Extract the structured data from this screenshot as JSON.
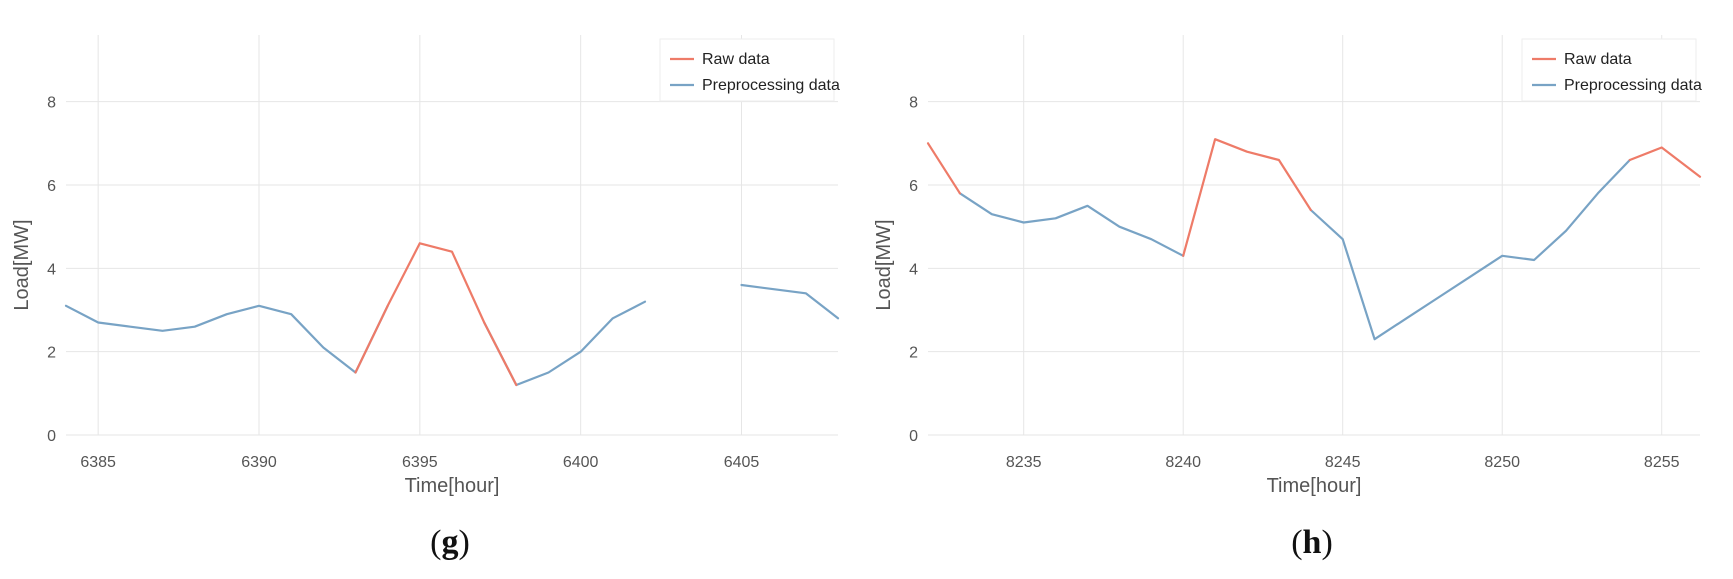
{
  "colors": {
    "raw": "#ee7b68",
    "preprocessing": "#78a3c5"
  },
  "chart_data": [
    {
      "type": "line",
      "panel_label": "g",
      "title": "",
      "xlabel": "Time[hour]",
      "ylabel": "Load[MW]",
      "xlim": [
        6384,
        6408
      ],
      "ylim": [
        0,
        9.6
      ],
      "xticks": [
        6385,
        6390,
        6395,
        6400,
        6405
      ],
      "yticks": [
        0,
        2,
        4,
        6,
        8
      ],
      "grid": true,
      "legend_position": "top-right",
      "series": [
        {
          "name": "Raw data",
          "color_key": "raw",
          "segments": [
            [
              [
                6393,
                1.5
              ],
              [
                6394,
                3.1
              ],
              [
                6395,
                4.6
              ],
              [
                6396,
                4.4
              ],
              [
                6397,
                2.7
              ],
              [
                6398,
                1.2
              ]
            ]
          ]
        },
        {
          "name": "Preprocessing data",
          "color_key": "preprocessing",
          "segments": [
            [
              [
                6384,
                3.1
              ],
              [
                6385,
                2.7
              ],
              [
                6386,
                2.6
              ],
              [
                6387,
                2.5
              ],
              [
                6388,
                2.6
              ],
              [
                6389,
                2.9
              ],
              [
                6390,
                3.1
              ],
              [
                6391,
                2.9
              ],
              [
                6392,
                2.1
              ],
              [
                6393,
                1.5
              ],
              [
                6394,
                3.1
              ]
            ],
            [
              [
                6397,
                2.7
              ],
              [
                6398,
                1.2
              ],
              [
                6399,
                1.5
              ],
              [
                6400,
                2.0
              ],
              [
                6401,
                2.8
              ],
              [
                6402,
                3.2
              ]
            ],
            [
              [
                6405,
                3.6
              ],
              [
                6406,
                3.5
              ],
              [
                6407,
                3.4
              ],
              [
                6408,
                2.8
              ]
            ]
          ]
        }
      ]
    },
    {
      "type": "line",
      "panel_label": "h",
      "title": "",
      "xlabel": "Time[hour]",
      "ylabel": "Load[MW]",
      "xlim": [
        8232,
        8256.2
      ],
      "ylim": [
        0,
        9.6
      ],
      "xticks": [
        8235,
        8240,
        8245,
        8250,
        8255
      ],
      "yticks": [
        0,
        2,
        4,
        6,
        8
      ],
      "grid": true,
      "legend_position": "top-right",
      "series": [
        {
          "name": "Raw data",
          "color_key": "raw",
          "segments": [
            [
              [
                8232,
                7.0
              ],
              [
                8233,
                5.8
              ]
            ],
            [
              [
                8240,
                4.3
              ],
              [
                8241,
                7.1
              ],
              [
                8242,
                6.8
              ],
              [
                8243,
                6.6
              ],
              [
                8244,
                5.4
              ]
            ],
            [
              [
                8254,
                6.6
              ],
              [
                8255,
                6.9
              ],
              [
                8256.2,
                6.2
              ]
            ]
          ]
        },
        {
          "name": "Preprocessing data",
          "color_key": "preprocessing",
          "segments": [
            [
              [
                8233,
                5.8
              ],
              [
                8234,
                5.3
              ],
              [
                8235,
                5.1
              ],
              [
                8236,
                5.2
              ],
              [
                8237,
                5.5
              ],
              [
                8238,
                5.0
              ],
              [
                8239,
                4.7
              ],
              [
                8240,
                4.3
              ]
            ],
            [
              [
                8244,
                5.4
              ],
              [
                8245,
                4.7
              ],
              [
                8246,
                2.3
              ],
              [
                8247,
                2.8
              ],
              [
                8248,
                3.3
              ],
              [
                8249,
                3.8
              ],
              [
                8250,
                4.3
              ],
              [
                8251,
                4.2
              ],
              [
                8252,
                4.9
              ],
              [
                8253,
                5.8
              ],
              [
                8254,
                6.6
              ]
            ]
          ]
        }
      ]
    }
  ]
}
